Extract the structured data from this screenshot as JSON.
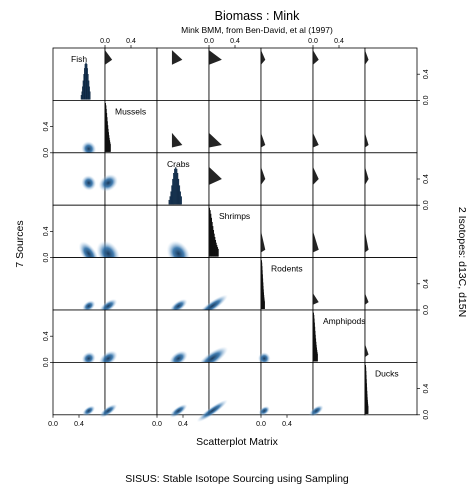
{
  "title": "Biomass :  Mink",
  "subtitle": "Mink BMM, from Ben-David, et al (1997)",
  "xlabel": "Scatterplot Matrix",
  "left_label": "7  Sources",
  "right_label": "2 Isotopes:  d13C, d15N",
  "footer": "SISUS: Stable Isotope Sourcing using Sampling",
  "colors": {
    "density_dark": "#1a3a5c",
    "density_mid": "#2e6fa8",
    "density_light": "#bcd6ee",
    "hist": "#111111",
    "frame": "#000000"
  },
  "chart_data": {
    "type": "scatterplot-matrix",
    "sources": [
      "Fish",
      "Mussels",
      "Crabs",
      "Shrimps",
      "Rodents",
      "Amphipods",
      "Ducks"
    ],
    "axis_range": [
      0,
      0.8
    ],
    "ticks": [
      {
        "value": 0.0,
        "label": "0.0"
      },
      {
        "value": 0.4,
        "label": "0.4"
      }
    ],
    "diagonal_histograms": [
      {
        "source": "Fish",
        "mode": 0.5,
        "spread": 0.035
      },
      {
        "source": "Mussels",
        "mode": 0.0,
        "spread": 0.05
      },
      {
        "source": "Crabs",
        "mode": 0.28,
        "spread": 0.05
      },
      {
        "source": "Shrimps",
        "mode": 0.0,
        "spread": 0.09
      },
      {
        "source": "Rodents",
        "mode": 0.0,
        "spread": 0.03
      },
      {
        "source": "Amphipods",
        "mode": 0.0,
        "spread": 0.04
      },
      {
        "source": "Ducks",
        "mode": 0.0,
        "spread": 0.025
      }
    ],
    "top_tick_columns": [
      2,
      4,
      6
    ],
    "bottom_tick_columns": [
      1,
      3,
      5
    ],
    "right_tick_rows": [
      1,
      3,
      5,
      7
    ],
    "left_tick_rows": [
      2,
      4,
      6
    ]
  }
}
